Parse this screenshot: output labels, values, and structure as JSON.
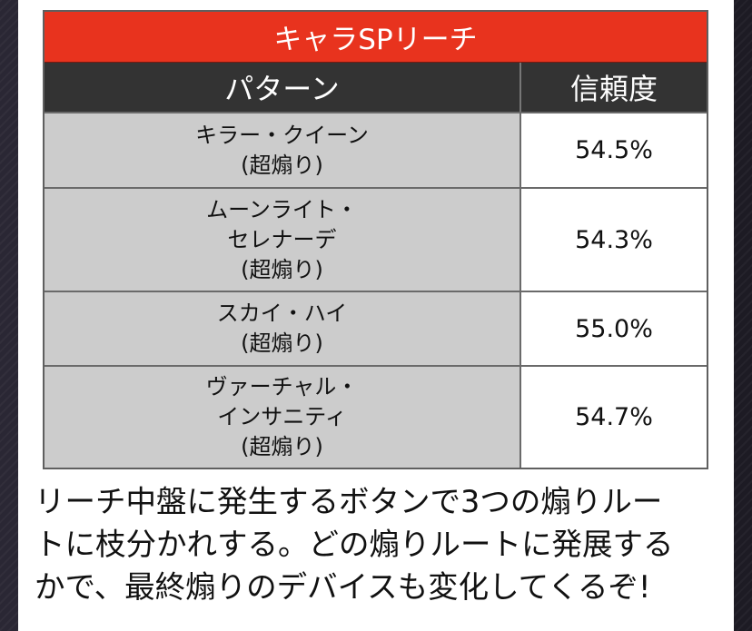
{
  "table": {
    "title": "キャラSPリーチ",
    "header": {
      "pattern": "パターン",
      "reliability": "信頼度"
    },
    "rows": [
      {
        "lines": [
          "キラー・クイーン",
          "(超煽り)"
        ],
        "value": "54.5%"
      },
      {
        "lines": [
          "ムーンライト・",
          "セレナーデ",
          "(超煽り)"
        ],
        "value": "54.3%"
      },
      {
        "lines": [
          "スカイ・ハイ",
          "(超煽り)"
        ],
        "value": "55.0%"
      },
      {
        "lines": [
          "ヴァーチャル・",
          "インサニティ",
          "(超煽り)"
        ],
        "value": "54.7%"
      }
    ]
  },
  "description": {
    "lines": [
      "リーチ中盤に発生するボタンで3つの煽りルー",
      "トに枝分かれする。どの煽りルートに発展する",
      "かで、最終煽りのデバイスも変化してくるぞ!"
    ]
  },
  "colors": {
    "title_bg": "#e8331e",
    "header_bg": "#333333",
    "pattern_cell_bg": "#cccccc"
  }
}
